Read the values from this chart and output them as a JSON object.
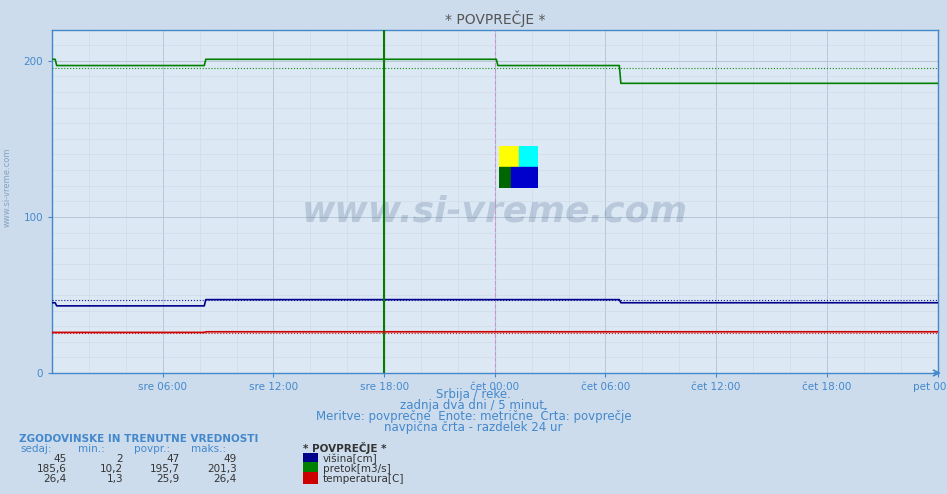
{
  "title": "* POVPREČJE *",
  "bg_color": "#ccdcec",
  "plot_bg_color": "#dce8f4",
  "grid_color_major": "#b8c8d8",
  "grid_color_minor": "#ccd8e8",
  "xlim": [
    0,
    576
  ],
  "ylim": [
    0,
    220
  ],
  "yticks": [
    0,
    100,
    200
  ],
  "xtick_labels": [
    "sre 06:00",
    "sre 12:00",
    "sre 18:00",
    "čet 00:00",
    "čet 06:00",
    "čet 12:00",
    "čet 18:00",
    "pet 00:00"
  ],
  "xtick_positions": [
    72,
    144,
    216,
    288,
    360,
    432,
    504,
    576
  ],
  "subtitle1": "Srbija / reke.",
  "subtitle2": "zadnja dva dni / 5 minut.",
  "subtitle3": "Meritve: povprečne  Enote: metrične  Črta: povprečje",
  "subtitle4": "navpična črta - razdelek 24 ur",
  "watermark": "www.si-vreme.com",
  "legend_title": "* POVPREČJE *",
  "legend_items": [
    "višina[cm]",
    "pretok[m3/s]",
    "temperatura[C]"
  ],
  "legend_colors": [
    "#00008b",
    "#008000",
    "#cc0000"
  ],
  "table_header": [
    "sedaj:",
    "min.:",
    "povpr.:",
    "maks.:"
  ],
  "table_rows": [
    [
      "45",
      "2",
      "47",
      "49"
    ],
    [
      "185,6",
      "10,2",
      "195,7",
      "201,3"
    ],
    [
      "26,4",
      "1,3",
      "25,9",
      "26,4"
    ]
  ],
  "height_color": "#00008b",
  "flow_color": "#008000",
  "temp_color": "#cc0000",
  "axis_color": "#4488cc",
  "text_color": "#4488cc",
  "height_avg": 47,
  "flow_avg": 195.7,
  "temp_avg": 25.9,
  "vline1_x": 216,
  "vline2_x": 288,
  "vline3_x": 576
}
